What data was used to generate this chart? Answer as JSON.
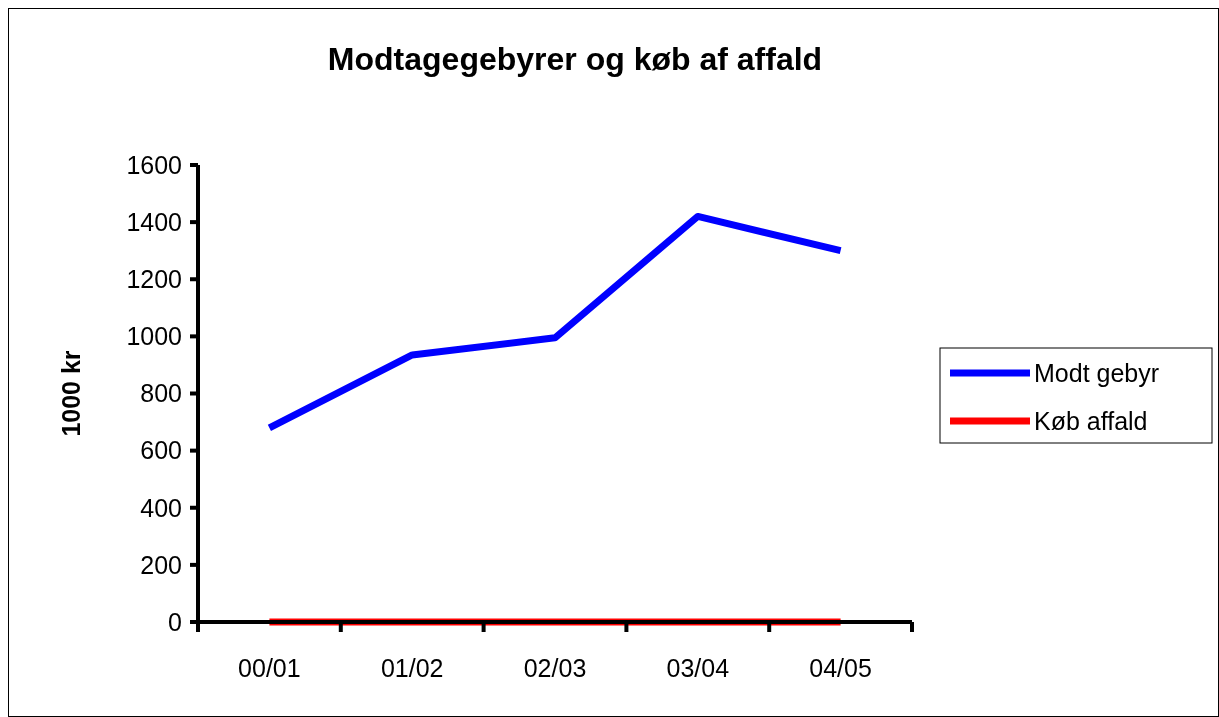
{
  "chart_data": {
    "type": "line",
    "title": "Modtagegebyrer og køb af affald",
    "ylabel": "1000 kr",
    "categories": [
      "00/01",
      "01/02",
      "02/03",
      "03/04",
      "04/05"
    ],
    "series": [
      {
        "name": "Modt gebyr",
        "color": "#0000ff",
        "values": [
          680,
          935,
          995,
          1420,
          1300
        ]
      },
      {
        "name": "Køb affald",
        "color": "#ff0000",
        "values": [
          0,
          0,
          0,
          0,
          0
        ]
      }
    ],
    "ylim": [
      0,
      1600
    ],
    "yticks": [
      0,
      200,
      400,
      600,
      800,
      1000,
      1200,
      1400,
      1600
    ],
    "grid": false,
    "legend": "right",
    "marker": "none",
    "line_style": "solid"
  }
}
